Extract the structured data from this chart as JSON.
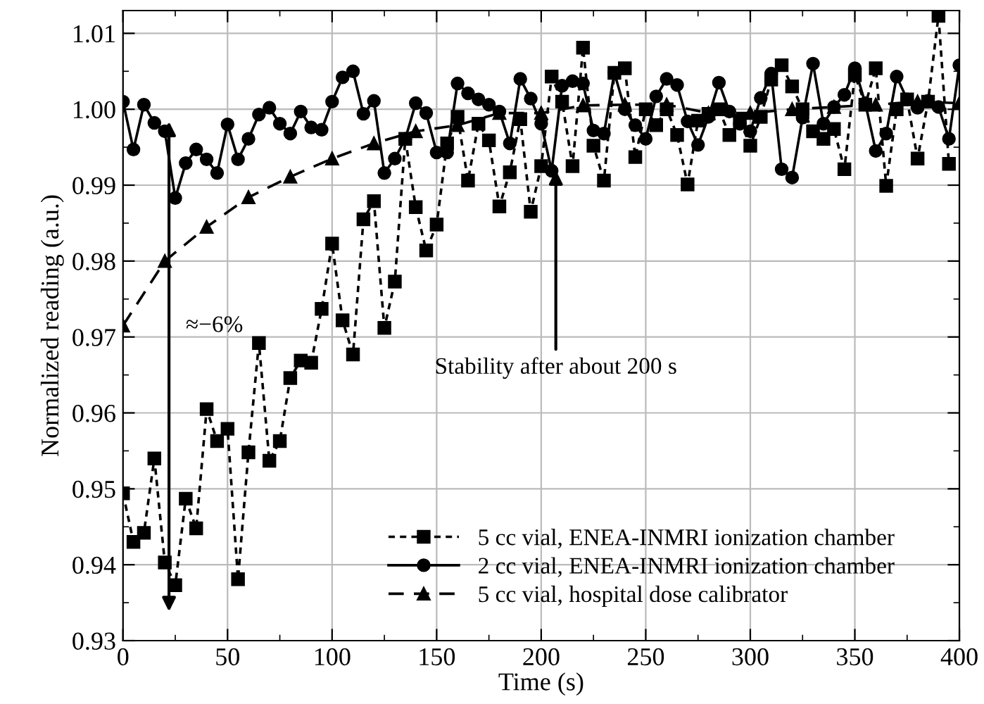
{
  "chart_data": {
    "type": "line",
    "xlabel": "Time (s)",
    "ylabel": "Normalized reading (a.u.)",
    "xlim": [
      0,
      400
    ],
    "ylim": [
      0.93,
      1.013
    ],
    "xticks": [
      0,
      50,
      100,
      150,
      200,
      250,
      300,
      350,
      400
    ],
    "yticks": [
      {
        "value": 0.93,
        "label": "0.93"
      },
      {
        "value": 0.94,
        "label": "0.94"
      },
      {
        "value": 0.95,
        "label": "0.95"
      },
      {
        "value": 0.96,
        "label": "0.96"
      },
      {
        "value": 0.97,
        "label": "0.97"
      },
      {
        "value": 0.98,
        "label": "0.98"
      },
      {
        "value": 0.99,
        "label": "0.99"
      },
      {
        "value": 1.0,
        "label": "1.00"
      },
      {
        "value": 1.01,
        "label": "1.01"
      }
    ],
    "grid": true,
    "legend": "bottom",
    "series": [
      {
        "name": "5 cc vial, ENEA-INMRI ionization chamber",
        "color": "#000000",
        "marker": "square",
        "line_style": "dotted",
        "x": [
          0,
          5,
          10,
          15,
          20,
          25,
          30,
          35,
          40,
          45,
          50,
          55,
          60,
          65,
          70,
          75,
          80,
          85,
          90,
          95,
          100,
          105,
          110,
          115,
          120,
          125,
          130,
          135,
          140,
          145,
          150,
          155,
          160,
          165,
          170,
          175,
          180,
          185,
          190,
          195,
          200,
          205,
          210,
          215,
          220,
          225,
          230,
          235,
          240,
          245,
          250,
          255,
          260,
          265,
          270,
          275,
          280,
          285,
          290,
          295,
          300,
          305,
          310,
          315,
          320,
          325,
          330,
          335,
          340,
          345,
          350,
          355,
          360,
          365,
          370,
          375,
          380,
          385,
          390,
          395
        ],
        "values": [
          0.9494,
          0.943,
          0.9442,
          0.954,
          0.9403,
          0.9373,
          0.9487,
          0.9448,
          0.9605,
          0.9563,
          0.9579,
          0.9381,
          0.9548,
          0.9692,
          0.9537,
          0.9563,
          0.9646,
          0.9669,
          0.9666,
          0.9737,
          0.9823,
          0.9722,
          0.9677,
          0.9855,
          0.9879,
          0.9712,
          0.9773,
          0.9961,
          0.9871,
          0.9814,
          0.9848,
          0.9955,
          0.999,
          0.9906,
          0.9981,
          0.9959,
          0.9872,
          0.9917,
          0.9987,
          0.9865,
          0.9925,
          1.0043,
          1.001,
          0.9925,
          1.0081,
          0.9952,
          0.9906,
          1.0048,
          1.0054,
          0.9937,
          1.0,
          0.9979,
          1.0,
          0.9966,
          0.9901,
          0.9985,
          0.9994,
          1.0,
          0.9966,
          0.9985,
          0.9952,
          0.999,
          1.0039,
          1.0058,
          1.003,
          1.0,
          0.9971,
          0.9961,
          0.9974,
          0.9921,
          1.0045,
          1.0006,
          1.0054,
          0.9899,
          1.0,
          1.0013,
          0.9935,
          1.001,
          1.0123,
          0.9928
        ]
      },
      {
        "name": "2 cc vial, ENEA-INMRI ionization chamber",
        "color": "#000000",
        "marker": "circle",
        "line_style": "solid",
        "x": [
          0,
          5,
          10,
          15,
          20,
          25,
          30,
          35,
          40,
          45,
          50,
          55,
          60,
          65,
          70,
          75,
          80,
          85,
          90,
          95,
          100,
          105,
          110,
          115,
          120,
          125,
          130,
          135,
          140,
          145,
          150,
          155,
          160,
          165,
          170,
          175,
          180,
          185,
          190,
          195,
          200,
          205,
          210,
          215,
          220,
          225,
          230,
          235,
          240,
          245,
          250,
          255,
          260,
          265,
          270,
          275,
          280,
          285,
          290,
          295,
          300,
          305,
          310,
          315,
          320,
          325,
          330,
          335,
          340,
          345,
          350,
          355,
          360,
          365,
          370,
          375,
          380,
          385,
          390,
          395,
          400
        ],
        "values": [
          1.001,
          0.9947,
          1.0006,
          0.9982,
          0.9971,
          0.9883,
          0.9929,
          0.9947,
          0.9934,
          0.9916,
          0.998,
          0.9934,
          0.9961,
          0.9993,
          1.0002,
          0.9981,
          0.9968,
          0.9997,
          0.9976,
          0.9973,
          1.001,
          1.0042,
          1.005,
          0.9994,
          1.0011,
          0.9916,
          0.9935,
          0.9961,
          1.0008,
          0.9995,
          0.9943,
          0.9943,
          1.0034,
          1.0021,
          1.0013,
          1.0006,
          0.9997,
          0.9955,
          1.004,
          1.0014,
          0.9981,
          0.9919,
          1.0031,
          1.0037,
          1.0034,
          0.9972,
          0.9968,
          1.0048,
          1.0,
          0.9979,
          0.9961,
          1.0017,
          1.004,
          1.0032,
          0.9984,
          0.9953,
          0.999,
          1.0035,
          0.9997,
          0.9981,
          0.9971,
          1.0015,
          1.0047,
          0.9921,
          0.991,
          0.9989,
          1.006,
          0.9981,
          1.0003,
          1.0019,
          1.0054,
          1.0008,
          0.9945,
          0.9968,
          1.0043,
          1.0013,
          1.0002,
          1.0011,
          1.0003,
          0.9961,
          1.0058
        ]
      },
      {
        "name": "5 cc vial, hospital dose calibrator",
        "color": "#000000",
        "marker": "triangle",
        "line_style": "dashed",
        "x": [
          0,
          20,
          40,
          60,
          80,
          100,
          120,
          140,
          160,
          180,
          200,
          220,
          240,
          260,
          280,
          300,
          320,
          340,
          360,
          380,
          400
        ],
        "values": [
          0.9715,
          0.98,
          0.9845,
          0.9884,
          0.9911,
          0.9935,
          0.9955,
          0.9971,
          0.9979,
          0.9995,
          0.9995,
          1.0005,
          1.0006,
          1.0006,
          0.9995,
          0.9995,
          1.0,
          1.0003,
          1.0006,
          1.001,
          1.0008
        ]
      }
    ],
    "annotations": [
      "≈−6%",
      {
        "text": "Stability after about 200 s",
        "x": 207,
        "y": 0.9925
      }
    ]
  }
}
